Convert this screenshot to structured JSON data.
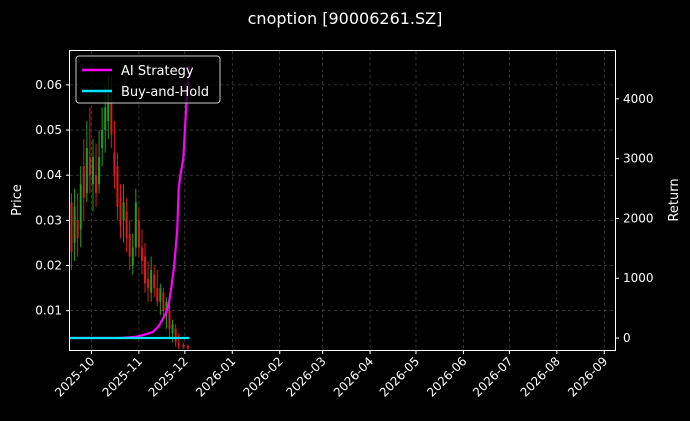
{
  "chart_data": {
    "type": "candlestick+line",
    "title": "cnoption [90006261.SZ]",
    "ylabel_left": "Price",
    "ylabel_right": "Return",
    "ylim_left": [
      0.0013,
      0.0675
    ],
    "ylim_right": [
      -200,
      4800
    ],
    "xlim": [
      "2025-09-17",
      "2026-09-08"
    ],
    "left_ticks": [
      "0.01",
      "0.02",
      "0.03",
      "0.04",
      "0.05",
      "0.06"
    ],
    "right_ticks": [
      "0",
      "1000",
      "2000",
      "3000",
      "4000"
    ],
    "x_ticks": [
      "2025-10",
      "2025-11",
      "2025-12",
      "2026-01",
      "2026-02",
      "2026-03",
      "2026-04",
      "2026-05",
      "2026-06",
      "2026-07",
      "2026-08",
      "2026-09"
    ],
    "grid": true,
    "legend_position": "upper-left",
    "colors": {
      "ai": "#ff00ff",
      "bh": "#00e5ff",
      "up": "#1aa31a",
      "down": "#e01818",
      "grid": "#555555"
    },
    "series": [
      {
        "name": "AI Strategy",
        "x": [
          "2025-09-17",
          "2025-10-05",
          "2025-10-20",
          "2025-10-30",
          "2025-11-05",
          "2025-11-10",
          "2025-11-14",
          "2025-11-18",
          "2025-11-20",
          "2025-11-22",
          "2025-11-24",
          "2025-11-26",
          "2025-11-27",
          "2025-11-28",
          "2025-11-30",
          "2025-12-02",
          "2025-12-03",
          "2025-12-04"
        ],
        "values": [
          0,
          0,
          0,
          20,
          60,
          100,
          200,
          380,
          500,
          800,
          1200,
          1800,
          2500,
          2700,
          3000,
          3900,
          4300,
          4550
        ]
      },
      {
        "name": "Buy-and-Hold",
        "x": [
          "2025-09-17",
          "2025-12-04"
        ],
        "values": [
          0,
          0
        ]
      }
    ],
    "candles": [
      {
        "date": "2025-09-18",
        "open": 0.034,
        "high": 0.036,
        "low": 0.019,
        "close": 0.023
      },
      {
        "date": "2025-09-20",
        "open": 0.025,
        "high": 0.037,
        "low": 0.021,
        "close": 0.033
      },
      {
        "date": "2025-09-22",
        "open": 0.03,
        "high": 0.036,
        "low": 0.022,
        "close": 0.026
      },
      {
        "date": "2025-09-24",
        "open": 0.028,
        "high": 0.042,
        "low": 0.024,
        "close": 0.038
      },
      {
        "date": "2025-09-26",
        "open": 0.042,
        "high": 0.048,
        "low": 0.03,
        "close": 0.035
      },
      {
        "date": "2025-09-28",
        "open": 0.036,
        "high": 0.052,
        "low": 0.034,
        "close": 0.046
      },
      {
        "date": "2025-09-30",
        "open": 0.044,
        "high": 0.055,
        "low": 0.036,
        "close": 0.04
      },
      {
        "date": "2025-10-02",
        "open": 0.038,
        "high": 0.048,
        "low": 0.032,
        "close": 0.044
      },
      {
        "date": "2025-10-04",
        "open": 0.04,
        "high": 0.047,
        "low": 0.033,
        "close": 0.036
      },
      {
        "date": "2025-10-06",
        "open": 0.038,
        "high": 0.05,
        "low": 0.036,
        "close": 0.044
      },
      {
        "date": "2025-10-08",
        "open": 0.046,
        "high": 0.055,
        "low": 0.042,
        "close": 0.05
      },
      {
        "date": "2025-10-10",
        "open": 0.05,
        "high": 0.06,
        "low": 0.045,
        "close": 0.055
      },
      {
        "date": "2025-10-12",
        "open": 0.052,
        "high": 0.062,
        "low": 0.048,
        "close": 0.058
      },
      {
        "date": "2025-10-14",
        "open": 0.056,
        "high": 0.062,
        "low": 0.046,
        "close": 0.049
      },
      {
        "date": "2025-10-16",
        "open": 0.045,
        "high": 0.052,
        "low": 0.037,
        "close": 0.04
      },
      {
        "date": "2025-10-18",
        "open": 0.042,
        "high": 0.045,
        "low": 0.03,
        "close": 0.033
      },
      {
        "date": "2025-10-20",
        "open": 0.035,
        "high": 0.038,
        "low": 0.026,
        "close": 0.029
      },
      {
        "date": "2025-10-22",
        "open": 0.03,
        "high": 0.038,
        "low": 0.025,
        "close": 0.034
      },
      {
        "date": "2025-10-24",
        "open": 0.032,
        "high": 0.035,
        "low": 0.023,
        "close": 0.026
      },
      {
        "date": "2025-10-26",
        "open": 0.027,
        "high": 0.03,
        "low": 0.019,
        "close": 0.022
      },
      {
        "date": "2025-10-28",
        "open": 0.02,
        "high": 0.027,
        "low": 0.018,
        "close": 0.024
      },
      {
        "date": "2025-10-30",
        "open": 0.024,
        "high": 0.037,
        "low": 0.022,
        "close": 0.034
      },
      {
        "date": "2025-11-01",
        "open": 0.03,
        "high": 0.033,
        "low": 0.022,
        "close": 0.024
      },
      {
        "date": "2025-11-03",
        "open": 0.024,
        "high": 0.028,
        "low": 0.018,
        "close": 0.021
      },
      {
        "date": "2025-11-05",
        "open": 0.022,
        "high": 0.025,
        "low": 0.014,
        "close": 0.016
      },
      {
        "date": "2025-11-07",
        "open": 0.017,
        "high": 0.021,
        "low": 0.012,
        "close": 0.015
      },
      {
        "date": "2025-11-09",
        "open": 0.014,
        "high": 0.022,
        "low": 0.012,
        "close": 0.019
      },
      {
        "date": "2025-11-11",
        "open": 0.018,
        "high": 0.02,
        "low": 0.013,
        "close": 0.015
      },
      {
        "date": "2025-11-13",
        "open": 0.015,
        "high": 0.019,
        "low": 0.011,
        "close": 0.012
      },
      {
        "date": "2025-11-15",
        "open": 0.012,
        "high": 0.016,
        "low": 0.009,
        "close": 0.015
      },
      {
        "date": "2025-11-17",
        "open": 0.014,
        "high": 0.015,
        "low": 0.008,
        "close": 0.01
      },
      {
        "date": "2025-11-19",
        "open": 0.01,
        "high": 0.013,
        "low": 0.006,
        "close": 0.012
      },
      {
        "date": "2025-11-21",
        "open": 0.01,
        "high": 0.012,
        "low": 0.004,
        "close": 0.006
      },
      {
        "date": "2025-11-23",
        "open": 0.005,
        "high": 0.008,
        "low": 0.003,
        "close": 0.007
      },
      {
        "date": "2025-11-25",
        "open": 0.006,
        "high": 0.007,
        "low": 0.002,
        "close": 0.003
      },
      {
        "date": "2025-11-27",
        "open": 0.003,
        "high": 0.005,
        "low": 0.0015,
        "close": 0.002
      },
      {
        "date": "2025-11-30",
        "open": 0.0025,
        "high": 0.003,
        "low": 0.0015,
        "close": 0.002
      },
      {
        "date": "2025-12-03",
        "open": 0.0022,
        "high": 0.0025,
        "low": 0.0014,
        "close": 0.0016
      }
    ]
  }
}
